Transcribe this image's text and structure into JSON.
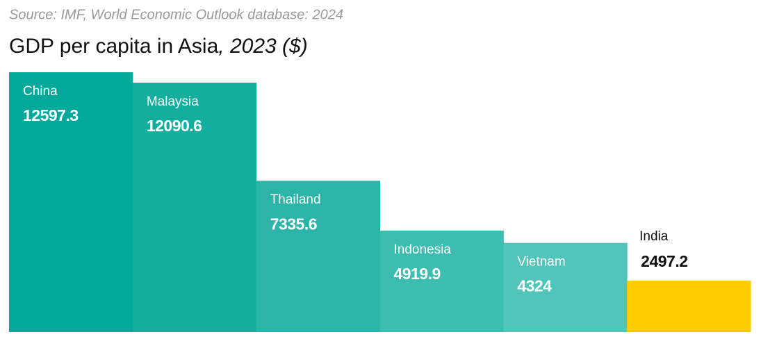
{
  "chart_data": {
    "type": "bar",
    "source": "Source: IMF, World Economic Outlook database: 2024",
    "title": "GDP per capita in Asia",
    "title_suffix": ", 2023 ($)",
    "categories": [
      "China",
      "Malaysia",
      "Thailand",
      "Indonesia",
      "Vietnam",
      "India"
    ],
    "values": [
      12597.3,
      12090.6,
      7335.6,
      4919.9,
      4324,
      2497.2
    ],
    "colors": [
      "#00a99a",
      "#14ae9f",
      "#2ab5a8",
      "#3dbcb0",
      "#52c5ba",
      "#ffcc00"
    ]
  }
}
